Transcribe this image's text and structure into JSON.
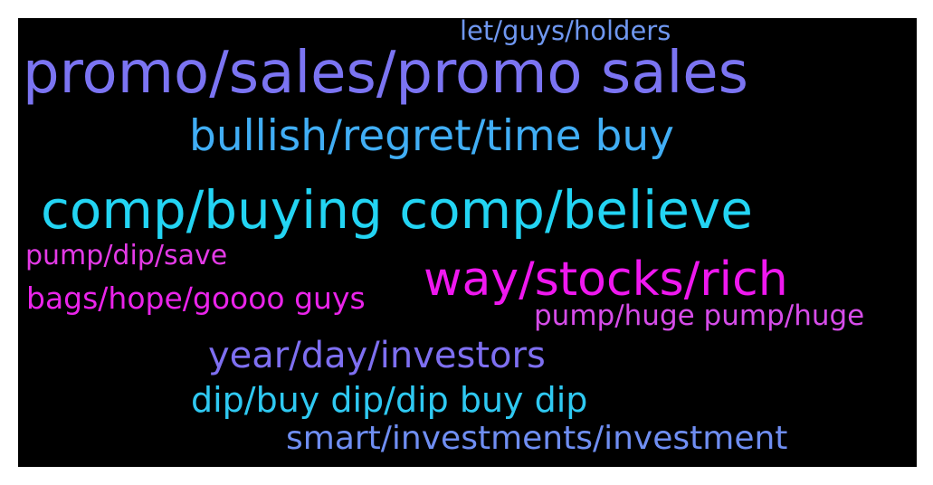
{
  "wordcloud": {
    "background": "#000000",
    "words": [
      {
        "id": "let-guys",
        "text": "let/guys/holders",
        "color": "#6f97f0"
      },
      {
        "id": "promo",
        "text": "promo/sales/promo sales",
        "color": "#7b74f2"
      },
      {
        "id": "bullish",
        "text": "bullish/regret/time buy",
        "color": "#41aef5"
      },
      {
        "id": "comp",
        "text": "comp/buying comp/believe",
        "color": "#23d4f3"
      },
      {
        "id": "pump-dip",
        "text": "pump/dip/save",
        "color": "#e43ae6"
      },
      {
        "id": "way",
        "text": "way/stocks/rich",
        "color": "#ef18ef"
      },
      {
        "id": "bags",
        "text": "bags/hope/goooo guys",
        "color": "#ea24ea"
      },
      {
        "id": "pump-huge",
        "text": "pump/huge pump/huge",
        "color": "#d64ce9"
      },
      {
        "id": "year",
        "text": "year/day/investors",
        "color": "#7e6ff1"
      },
      {
        "id": "dipbuy",
        "text": "dip/buy dip/dip buy dip",
        "color": "#2fc9f2"
      },
      {
        "id": "smart",
        "text": "smart/investments/investment",
        "color": "#6f8ef2"
      }
    ]
  }
}
